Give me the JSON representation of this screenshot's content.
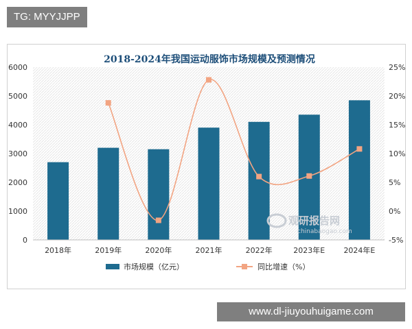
{
  "overlay": {
    "top_label": "TG: MYYJJPP",
    "bottom_label": "www.dl-jiuyouhuigame.com"
  },
  "brand": {
    "name": "观研报告网",
    "domain": "chinabaogao.com"
  },
  "colors": {
    "bar": "#1e6b8f",
    "line": "#f2a482",
    "title": "#1d4e79"
  },
  "chart_data": {
    "type": "bar+line",
    "title": "2018-2024年我国运动服饰市场规模及预测情况",
    "categories": [
      "2018年",
      "2019年",
      "2020年",
      "2021年",
      "2022年",
      "2023年E",
      "2024年E"
    ],
    "series": [
      {
        "name": "市场规模（亿元）",
        "type": "bar",
        "axis": "left",
        "values": [
          2700,
          3200,
          3150,
          3900,
          4100,
          4350,
          4850
        ]
      },
      {
        "name": "同比增速（%）",
        "type": "line",
        "axis": "right",
        "values": [
          null,
          18.8,
          -1.6,
          22.8,
          6.0,
          6.1,
          10.8
        ]
      }
    ],
    "y_left": {
      "min": 0,
      "max": 6000,
      "ticks": [
        "0",
        "1000",
        "2000",
        "3000",
        "4000",
        "5000",
        "6000"
      ]
    },
    "y_right": {
      "min": -5,
      "max": 25,
      "ticks": [
        "-5%",
        "0%",
        "5%",
        "10%",
        "15%",
        "20%",
        "25%"
      ]
    },
    "legend_position": "bottom",
    "grid": false
  }
}
